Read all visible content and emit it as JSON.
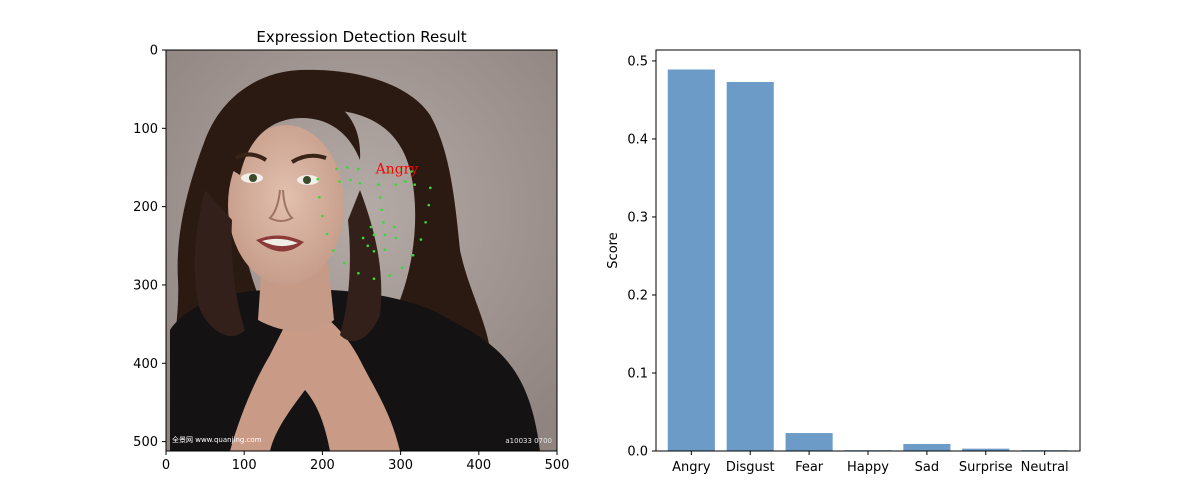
{
  "chart_data": [
    {
      "type": "image",
      "title": "Expression Detection Result",
      "xlim": [
        0,
        500
      ],
      "ylim": [
        512,
        0
      ],
      "xticks": [
        0,
        100,
        200,
        300,
        400,
        500
      ],
      "yticks": [
        0,
        100,
        200,
        300,
        400,
        500
      ],
      "overlay": {
        "label": "Angry",
        "label_color": "#ff0000",
        "label_pos": [
          268,
          140
        ],
        "landmark_color": "#33dd33",
        "landmarks": [
          [
            194,
            165
          ],
          [
            196,
            188
          ],
          [
            200,
            212
          ],
          [
            206,
            235
          ],
          [
            214,
            256
          ],
          [
            228,
            272
          ],
          [
            246,
            285
          ],
          [
            266,
            292
          ],
          [
            286,
            288
          ],
          [
            302,
            278
          ],
          [
            316,
            262
          ],
          [
            326,
            242
          ],
          [
            332,
            220
          ],
          [
            336,
            198
          ],
          [
            338,
            176
          ],
          [
            218,
            152
          ],
          [
            232,
            150
          ],
          [
            246,
            152
          ],
          [
            286,
            155
          ],
          [
            300,
            152
          ],
          [
            314,
            155
          ],
          [
            272,
            172
          ],
          [
            274,
            188
          ],
          [
            276,
            204
          ],
          [
            278,
            220
          ],
          [
            262,
            226
          ],
          [
            292,
            226
          ],
          [
            222,
            168
          ],
          [
            236,
            166
          ],
          [
            248,
            170
          ],
          [
            294,
            172
          ],
          [
            306,
            168
          ],
          [
            318,
            172
          ],
          [
            252,
            240
          ],
          [
            266,
            236
          ],
          [
            280,
            236
          ],
          [
            294,
            240
          ],
          [
            280,
            255
          ],
          [
            266,
            257
          ],
          [
            258,
            250
          ]
        ],
        "watermark_left": "全景网 www.quanjing.com",
        "watermark_right": "a10033 0700"
      }
    },
    {
      "type": "bar",
      "categories": [
        "Angry",
        "Disgust",
        "Fear",
        "Happy",
        "Sad",
        "Surprise",
        "Neutral"
      ],
      "values": [
        0.489,
        0.473,
        0.023,
        0.001,
        0.009,
        0.003,
        0.001
      ],
      "ylabel": "Score",
      "xlabel": "",
      "ylim": [
        0,
        0.514
      ],
      "yticks": [
        0.0,
        0.1,
        0.2,
        0.3,
        0.4,
        0.5
      ],
      "color": "#6b9bc6",
      "grid": false
    }
  ]
}
